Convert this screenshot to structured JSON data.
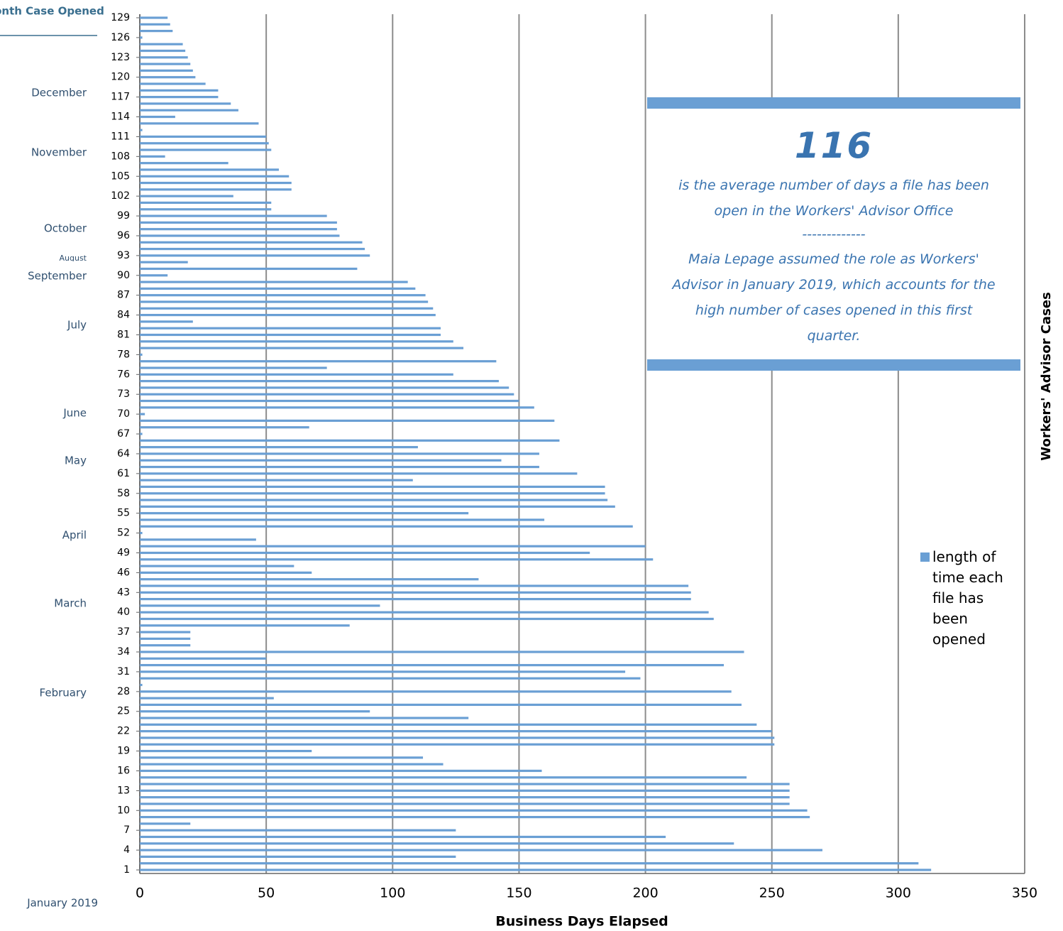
{
  "chart_data": {
    "type": "bar",
    "orientation": "horizontal",
    "y_axis_label": "Month Case Opened",
    "x_axis_label": "Business Days Elapsed",
    "right_label": "Workers' Advisor Cases",
    "month_labels": [
      "December",
      "November",
      "October",
      "August",
      "September",
      "July",
      "June",
      "May",
      "April",
      "March",
      "February",
      "January 2019"
    ],
    "categories": [
      "1",
      null,
      null,
      "4",
      null,
      null,
      "7",
      null,
      null,
      "10",
      null,
      null,
      "13",
      null,
      null,
      "16",
      null,
      null,
      "19",
      null,
      null,
      "22",
      null,
      null,
      "25",
      null,
      null,
      "28",
      null,
      null,
      "31",
      null,
      null,
      "34",
      null,
      null,
      "37",
      null,
      null,
      "40",
      null,
      null,
      "43",
      null,
      null,
      "46",
      null,
      null,
      "49",
      null,
      null,
      "52",
      null,
      null,
      "55",
      null,
      null,
      "58",
      null,
      null,
      "61",
      null,
      null,
      "64",
      null,
      null,
      "67",
      null,
      null,
      "70",
      null,
      null,
      "73",
      null,
      null,
      "76",
      null,
      null,
      "78",
      null,
      null,
      "81",
      null,
      null,
      "84",
      null,
      null,
      "87",
      null,
      null,
      "90",
      null,
      null,
      "93",
      null,
      null,
      "96",
      null,
      null,
      "99",
      null,
      null,
      "102",
      null,
      null,
      "105",
      null,
      null,
      "108",
      null,
      null,
      "111",
      null,
      null,
      "114",
      null,
      null,
      "117",
      null,
      null,
      "120",
      null,
      null,
      "123",
      null,
      null,
      "126",
      null,
      null,
      "129"
    ],
    "series": [
      {
        "name": "length of time each file has been opened",
        "color": "#6a9fd4",
        "values": [
          313,
          308,
          125,
          270,
          235,
          208,
          125,
          20,
          265,
          264,
          257,
          257,
          257,
          257,
          240,
          159,
          120,
          112,
          68,
          251,
          251,
          250,
          244,
          130,
          91,
          238,
          53,
          234,
          1,
          198,
          192,
          231,
          50,
          239,
          20,
          20,
          20,
          83,
          227,
          225,
          95,
          218,
          218,
          217,
          134,
          68,
          61,
          203,
          178,
          200,
          46,
          1,
          195,
          160,
          130,
          188,
          185,
          184,
          184,
          108,
          173,
          158,
          143,
          158,
          110,
          166,
          1,
          67,
          164,
          2,
          156,
          150,
          148,
          146,
          142,
          124,
          74,
          141,
          1,
          128,
          124,
          119,
          119,
          21,
          117,
          116,
          114,
          113,
          109,
          106,
          11,
          86,
          19,
          91,
          89,
          88,
          79,
          78,
          78,
          74,
          52,
          52,
          37,
          60,
          60,
          59,
          55,
          35,
          10,
          52,
          51,
          50,
          1,
          47,
          14,
          39,
          36,
          31,
          31,
          26,
          22,
          21,
          20,
          19,
          18,
          17,
          1,
          13,
          12,
          11
        ]
      }
    ],
    "xlim": [
      0,
      350
    ],
    "xticks": [
      0,
      50,
      100,
      150,
      200,
      250,
      300,
      350
    ],
    "grid": true,
    "legend": "right",
    "annotation": {
      "headline": "116",
      "text1": "is the average number of days a file has been open in the Workers' Advisor Office",
      "divider": "-------------",
      "text2": "Maia Lepage assumed the role as Workers' Advisor in January 2019, which accounts for the high number of cases opened in this first quarter."
    }
  }
}
